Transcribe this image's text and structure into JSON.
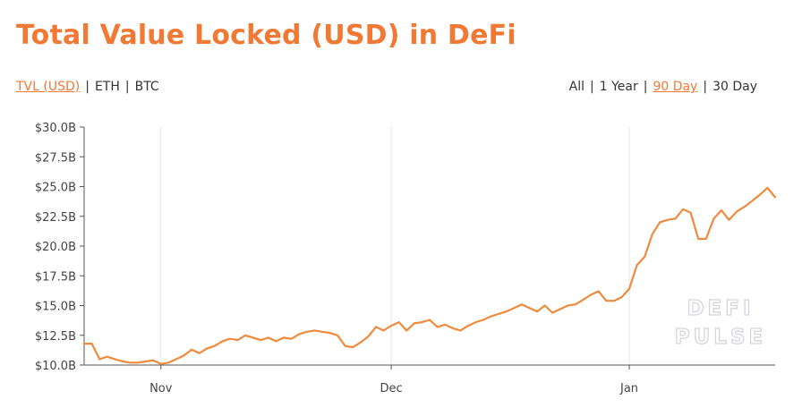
{
  "header": {
    "title": "Total Value Locked (USD) in DeFi"
  },
  "unit_toggle": [
    {
      "label": "TVL (USD)",
      "active": true
    },
    {
      "label": "ETH",
      "active": false
    },
    {
      "label": "BTC",
      "active": false
    }
  ],
  "range_toggle": [
    {
      "label": "All",
      "active": false
    },
    {
      "label": "1 Year",
      "active": false
    },
    {
      "label": "90 Day",
      "active": true
    },
    {
      "label": "30 Day",
      "active": false
    }
  ],
  "watermark": {
    "line1": "DEFI",
    "line2": "PULSE"
  },
  "colors": {
    "accent": "#f07a35",
    "line": "#f08a3c",
    "grid": "#e6e6e6",
    "axis": "#555555"
  },
  "chart_data": {
    "type": "line",
    "title": "Total Value Locked (USD) in DeFi",
    "xlabel": "",
    "ylabel": "",
    "x_range": [
      "2020-10-22",
      "2021-01-20"
    ],
    "x_ticks": [
      {
        "date": "2020-11-01",
        "label": "Nov"
      },
      {
        "date": "2020-12-01",
        "label": "Dec"
      },
      {
        "date": "2021-01-01",
        "label": "Jan"
      }
    ],
    "ylim": [
      10.0,
      30.0
    ],
    "y_ticks": [
      {
        "value": 10.0,
        "label": "$10.0B"
      },
      {
        "value": 12.5,
        "label": "$12.5B"
      },
      {
        "value": 15.0,
        "label": "$15.0B"
      },
      {
        "value": 17.5,
        "label": "$17.5B"
      },
      {
        "value": 20.0,
        "label": "$20.0B"
      },
      {
        "value": 22.5,
        "label": "$22.5B"
      },
      {
        "value": 25.0,
        "label": "$25.0B"
      },
      {
        "value": 27.5,
        "label": "$27.5B"
      },
      {
        "value": 30.0,
        "label": "$30.0B"
      }
    ],
    "grid": {
      "x": true,
      "y": false
    },
    "series": [
      {
        "color": "#f08a3c",
        "points": [
          [
            "2020-10-22",
            11.8
          ],
          [
            "2020-10-23",
            11.8
          ],
          [
            "2020-10-24",
            10.5
          ],
          [
            "2020-10-25",
            10.7
          ],
          [
            "2020-10-26",
            10.5
          ],
          [
            "2020-10-27",
            10.3
          ],
          [
            "2020-10-28",
            10.2
          ],
          [
            "2020-10-29",
            10.2
          ],
          [
            "2020-10-30",
            10.3
          ],
          [
            "2020-10-31",
            10.4
          ],
          [
            "2020-11-01",
            10.1
          ],
          [
            "2020-11-02",
            10.2
          ],
          [
            "2020-11-03",
            10.5
          ],
          [
            "2020-11-04",
            10.8
          ],
          [
            "2020-11-05",
            11.3
          ],
          [
            "2020-11-06",
            11.0
          ],
          [
            "2020-11-07",
            11.4
          ],
          [
            "2020-11-08",
            11.6
          ],
          [
            "2020-11-09",
            12.0
          ],
          [
            "2020-11-10",
            12.2
          ],
          [
            "2020-11-11",
            12.1
          ],
          [
            "2020-11-12",
            12.5
          ],
          [
            "2020-11-13",
            12.3
          ],
          [
            "2020-11-14",
            12.1
          ],
          [
            "2020-11-15",
            12.3
          ],
          [
            "2020-11-16",
            12.0
          ],
          [
            "2020-11-17",
            12.3
          ],
          [
            "2020-11-18",
            12.2
          ],
          [
            "2020-11-19",
            12.6
          ],
          [
            "2020-11-20",
            12.8
          ],
          [
            "2020-11-21",
            12.9
          ],
          [
            "2020-11-22",
            12.8
          ],
          [
            "2020-11-23",
            12.7
          ],
          [
            "2020-11-24",
            12.5
          ],
          [
            "2020-11-25",
            11.6
          ],
          [
            "2020-11-26",
            11.5
          ],
          [
            "2020-11-27",
            11.9
          ],
          [
            "2020-11-28",
            12.4
          ],
          [
            "2020-11-29",
            13.2
          ],
          [
            "2020-11-30",
            12.9
          ],
          [
            "2020-12-01",
            13.3
          ],
          [
            "2020-12-02",
            13.6
          ],
          [
            "2020-12-03",
            12.9
          ],
          [
            "2020-12-04",
            13.5
          ],
          [
            "2020-12-05",
            13.6
          ],
          [
            "2020-12-06",
            13.8
          ],
          [
            "2020-12-07",
            13.2
          ],
          [
            "2020-12-08",
            13.4
          ],
          [
            "2020-12-09",
            13.1
          ],
          [
            "2020-12-10",
            12.9
          ],
          [
            "2020-12-11",
            13.3
          ],
          [
            "2020-12-12",
            13.6
          ],
          [
            "2020-12-13",
            13.8
          ],
          [
            "2020-12-14",
            14.1
          ],
          [
            "2020-12-15",
            14.3
          ],
          [
            "2020-12-16",
            14.5
          ],
          [
            "2020-12-17",
            14.8
          ],
          [
            "2020-12-18",
            15.1
          ],
          [
            "2020-12-19",
            14.8
          ],
          [
            "2020-12-20",
            14.5
          ],
          [
            "2020-12-21",
            15.0
          ],
          [
            "2020-12-22",
            14.4
          ],
          [
            "2020-12-23",
            14.7
          ],
          [
            "2020-12-24",
            15.0
          ],
          [
            "2020-12-25",
            15.1
          ],
          [
            "2020-12-26",
            15.5
          ],
          [
            "2020-12-27",
            15.9
          ],
          [
            "2020-12-28",
            16.2
          ],
          [
            "2020-12-29",
            15.4
          ],
          [
            "2020-12-30",
            15.4
          ],
          [
            "2020-12-31",
            15.7
          ],
          [
            "2021-01-01",
            16.4
          ],
          [
            "2021-01-02",
            18.4
          ],
          [
            "2021-01-03",
            19.1
          ],
          [
            "2021-01-04",
            21.0
          ],
          [
            "2021-01-05",
            22.0
          ],
          [
            "2021-01-06",
            22.2
          ],
          [
            "2021-01-07",
            22.3
          ],
          [
            "2021-01-08",
            23.1
          ],
          [
            "2021-01-09",
            22.8
          ],
          [
            "2021-01-10",
            20.6
          ],
          [
            "2021-01-11",
            20.6
          ],
          [
            "2021-01-12",
            22.3
          ],
          [
            "2021-01-13",
            23.0
          ],
          [
            "2021-01-14",
            22.2
          ],
          [
            "2021-01-15",
            22.9
          ],
          [
            "2021-01-16",
            23.3
          ],
          [
            "2021-01-17",
            23.8
          ],
          [
            "2021-01-18",
            24.3
          ],
          [
            "2021-01-19",
            24.9
          ],
          [
            "2021-01-20",
            24.1
          ]
        ]
      }
    ]
  }
}
